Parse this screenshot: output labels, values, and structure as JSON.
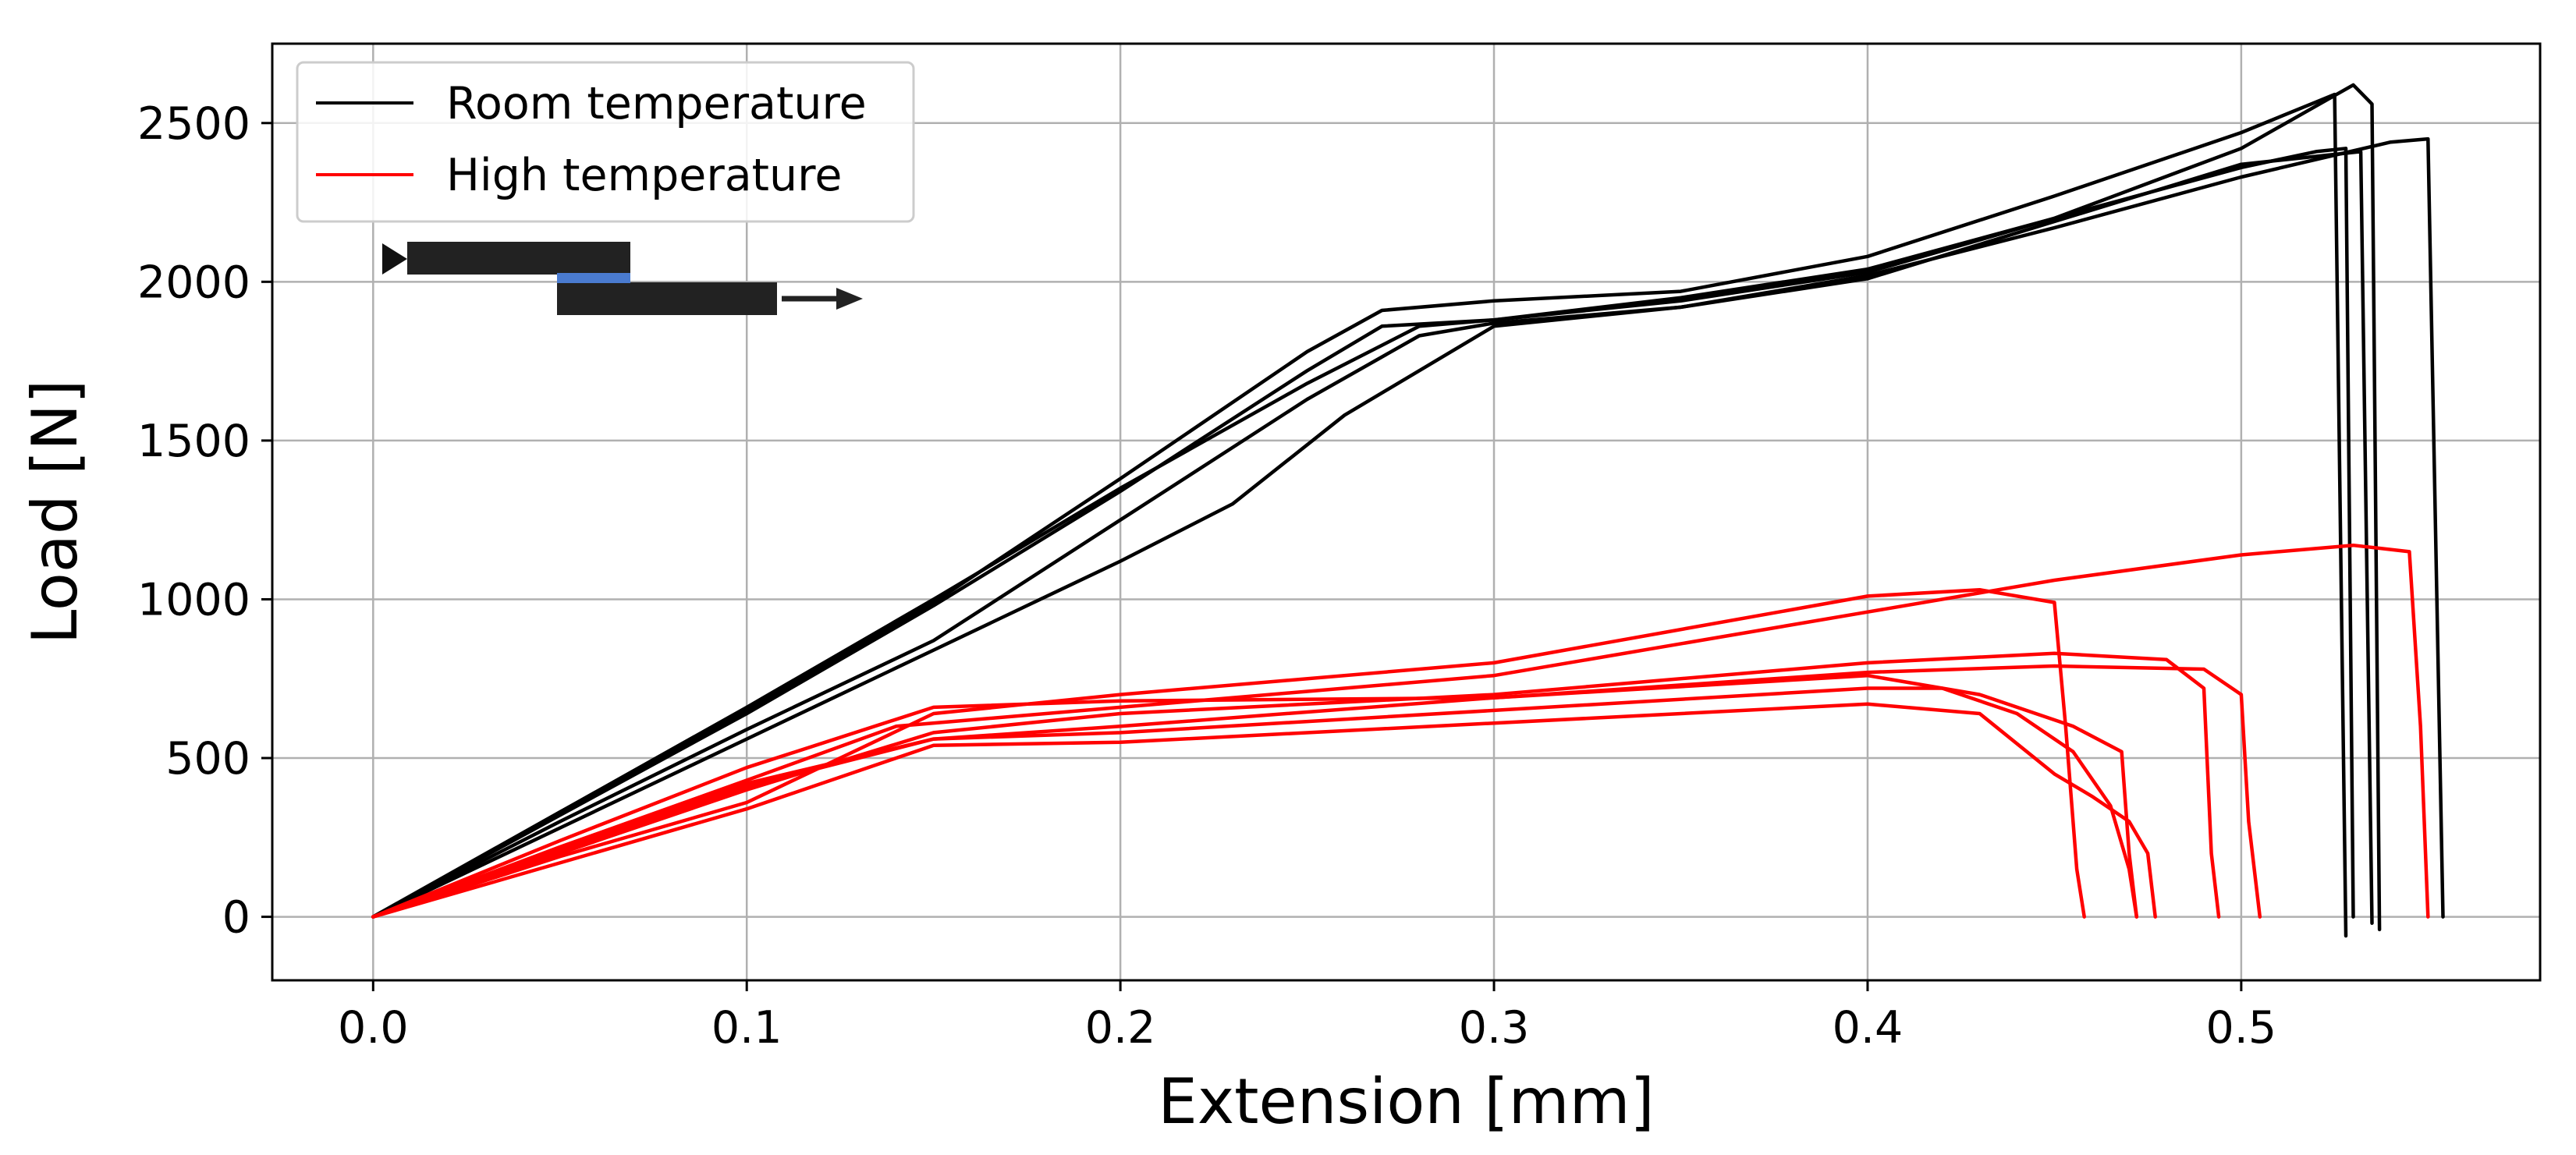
{
  "chart_data": {
    "type": "line",
    "title": "",
    "xlabel": "Extension [mm]",
    "ylabel": "Load [N]",
    "xlim": [
      -0.027,
      0.58
    ],
    "ylim": [
      -200,
      2750
    ],
    "xticks": [
      0.0,
      0.1,
      0.2,
      0.3,
      0.4,
      0.5
    ],
    "xtick_labels": [
      "0.0",
      "0.1",
      "0.2",
      "0.3",
      "0.4",
      "0.5"
    ],
    "yticks": [
      0,
      500,
      1000,
      1500,
      2000,
      2500
    ],
    "ytick_labels": [
      "0",
      "500",
      "1000",
      "1500",
      "2000",
      "2500"
    ],
    "grid": true,
    "legend": {
      "position": "top-left",
      "entries": [
        {
          "label": "Room temperature",
          "color": "#000000"
        },
        {
          "label": "High temperature",
          "color": "#ff0000"
        }
      ]
    },
    "inset_schematic": {
      "description_icon": "single-lap-joint-icon",
      "plate_color": "#222222",
      "adhesive_color": "#4a7bd0"
    },
    "series": [
      {
        "name": "Room temperature",
        "color": "#000000",
        "x": [
          0,
          0.05,
          0.1,
          0.15,
          0.2,
          0.25,
          0.28,
          0.3,
          0.35,
          0.4,
          0.45,
          0.5,
          0.52,
          0.528,
          0.53
        ],
        "y": [
          0,
          330,
          660,
          1000,
          1350,
          1680,
          1860,
          1880,
          1950,
          2040,
          2200,
          2360,
          2410,
          2420,
          0
        ]
      },
      {
        "name": "Room temperature",
        "color": "#000000",
        "x": [
          0,
          0.05,
          0.1,
          0.15,
          0.2,
          0.25,
          0.27,
          0.3,
          0.35,
          0.4,
          0.45,
          0.5,
          0.53,
          0.535,
          0.537
        ],
        "y": [
          0,
          320,
          640,
          980,
          1340,
          1720,
          1860,
          1880,
          1940,
          2030,
          2200,
          2420,
          2620,
          2560,
          -40
        ]
      },
      {
        "name": "Room temperature",
        "color": "#000000",
        "x": [
          0,
          0.05,
          0.1,
          0.15,
          0.2,
          0.23,
          0.26,
          0.3,
          0.35,
          0.4,
          0.45,
          0.5,
          0.54,
          0.55,
          0.554
        ],
        "y": [
          0,
          280,
          560,
          840,
          1120,
          1300,
          1580,
          1860,
          1920,
          2020,
          2170,
          2330,
          2440,
          2450,
          0
        ]
      },
      {
        "name": "Room temperature",
        "color": "#000000",
        "x": [
          0,
          0.05,
          0.1,
          0.15,
          0.2,
          0.25,
          0.27,
          0.3,
          0.35,
          0.4,
          0.45,
          0.5,
          0.525,
          0.528
        ],
        "y": [
          0,
          330,
          650,
          990,
          1380,
          1780,
          1910,
          1940,
          1970,
          2080,
          2270,
          2470,
          2590,
          -60
        ]
      },
      {
        "name": "Room temperature",
        "color": "#000000",
        "x": [
          0,
          0.05,
          0.1,
          0.15,
          0.2,
          0.25,
          0.28,
          0.3,
          0.35,
          0.4,
          0.45,
          0.5,
          0.532,
          0.535
        ],
        "y": [
          0,
          300,
          590,
          870,
          1250,
          1630,
          1830,
          1870,
          1920,
          2010,
          2190,
          2370,
          2410,
          -20
        ]
      },
      {
        "name": "High temperature",
        "color": "#ff0000",
        "x": [
          0,
          0.05,
          0.1,
          0.15,
          0.2,
          0.3,
          0.4,
          0.43,
          0.45,
          0.453,
          0.456,
          0.458
        ],
        "y": [
          0,
          190,
          360,
          640,
          700,
          800,
          1010,
          1030,
          990,
          600,
          150,
          0
        ]
      },
      {
        "name": "High temperature",
        "color": "#ff0000",
        "x": [
          0,
          0.05,
          0.1,
          0.14,
          0.2,
          0.3,
          0.4,
          0.45,
          0.5,
          0.53,
          0.545,
          0.548,
          0.55
        ],
        "y": [
          0,
          220,
          430,
          600,
          660,
          760,
          960,
          1060,
          1140,
          1170,
          1150,
          600,
          0
        ]
      },
      {
        "name": "High temperature",
        "color": "#ff0000",
        "x": [
          0,
          0.05,
          0.1,
          0.15,
          0.2,
          0.3,
          0.4,
          0.45,
          0.48,
          0.49,
          0.492,
          0.494
        ],
        "y": [
          0,
          200,
          400,
          580,
          640,
          700,
          800,
          830,
          810,
          720,
          200,
          0
        ]
      },
      {
        "name": "High temperature",
        "color": "#ff0000",
        "x": [
          0,
          0.05,
          0.1,
          0.15,
          0.2,
          0.3,
          0.4,
          0.45,
          0.49,
          0.5,
          0.502,
          0.505
        ],
        "y": [
          0,
          200,
          410,
          560,
          600,
          690,
          770,
          790,
          780,
          700,
          300,
          0
        ]
      },
      {
        "name": "High temperature",
        "color": "#ff0000",
        "x": [
          0,
          0.05,
          0.1,
          0.15,
          0.2,
          0.3,
          0.4,
          0.43,
          0.455,
          0.468,
          0.47,
          0.472
        ],
        "y": [
          0,
          240,
          470,
          660,
          680,
          690,
          760,
          700,
          600,
          520,
          200,
          0
        ]
      },
      {
        "name": "High temperature",
        "color": "#ff0000",
        "x": [
          0,
          0.05,
          0.1,
          0.15,
          0.2,
          0.3,
          0.4,
          0.43,
          0.45,
          0.46,
          0.47,
          0.475,
          0.477
        ],
        "y": [
          0,
          170,
          340,
          540,
          550,
          610,
          670,
          640,
          450,
          380,
          300,
          200,
          0
        ]
      },
      {
        "name": "High temperature",
        "color": "#ff0000",
        "x": [
          0,
          0.05,
          0.1,
          0.15,
          0.2,
          0.3,
          0.4,
          0.42,
          0.44,
          0.455,
          0.465,
          0.47,
          0.472
        ],
        "y": [
          0,
          210,
          420,
          560,
          580,
          650,
          720,
          720,
          640,
          520,
          350,
          150,
          0
        ]
      }
    ]
  }
}
